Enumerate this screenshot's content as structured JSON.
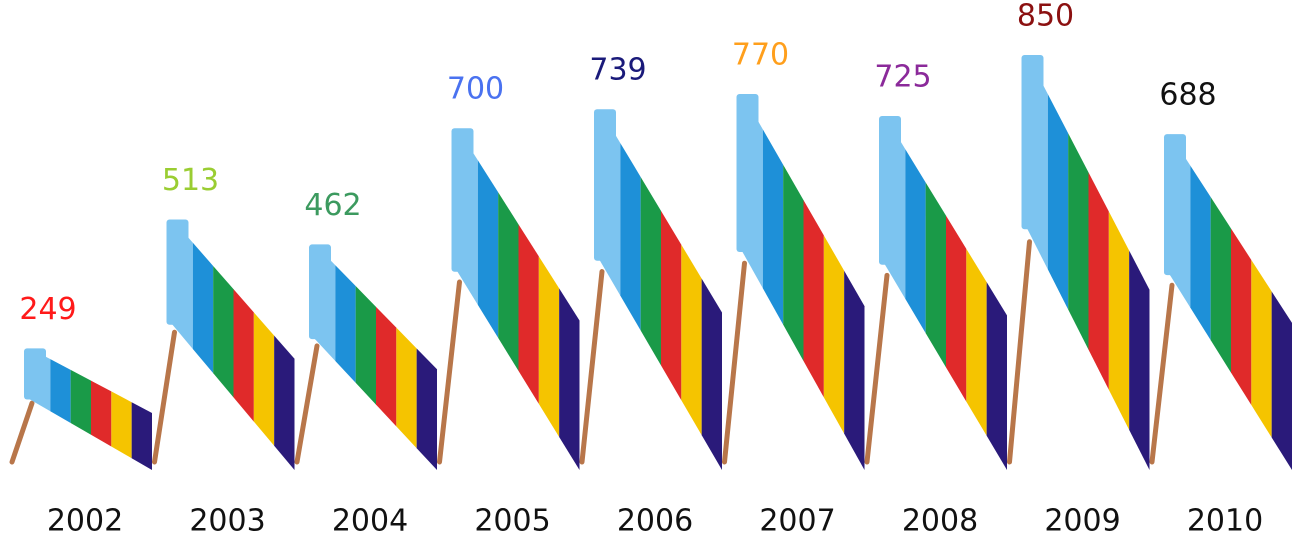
{
  "chart_data": {
    "type": "pictorial-bar",
    "categories": [
      "2002",
      "2003",
      "2004",
      "2005",
      "2006",
      "2007",
      "2008",
      "2009",
      "2010"
    ],
    "values": [
      249,
      513,
      462,
      700,
      739,
      770,
      725,
      850,
      688
    ],
    "label_colors": [
      "#ff1a1a",
      "#9acd32",
      "#3c9a5f",
      "#4a72f0",
      "#1a1a7a",
      "#ff9f1c",
      "#8b2a9a",
      "#8b1010",
      "#111111"
    ],
    "stripe_colors": [
      "#7cc4f0",
      "#1e90d8",
      "#1a9a48",
      "#e02a2a",
      "#f5c400",
      "#2a1a7a"
    ],
    "pole_color": "#b8764a"
  }
}
